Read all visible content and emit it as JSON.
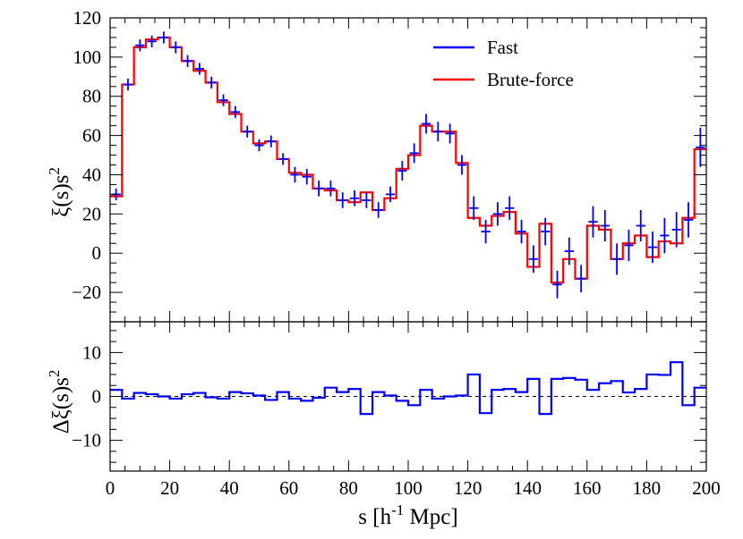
{
  "chart_data": [
    {
      "type": "line",
      "panel": "top",
      "ylabel_main": "ξ(s)s",
      "ylabel_sup": "2",
      "xlim": [
        0,
        200
      ],
      "ylim": [
        -35,
        120
      ],
      "yticks": [
        -20,
        0,
        20,
        40,
        60,
        80,
        100,
        120
      ],
      "ytick_labels": [
        "−20",
        "0",
        "20",
        "40",
        "60",
        "80",
        "100",
        "120"
      ],
      "legend": {
        "placement": "top-right",
        "entries": [
          "Fast",
          "Brute-force"
        ]
      },
      "bin_edges": [
        0,
        4,
        8,
        12,
        16,
        20,
        24,
        28,
        32,
        36,
        40,
        44,
        48,
        52,
        56,
        60,
        64,
        68,
        72,
        76,
        80,
        84,
        88,
        92,
        96,
        100,
        104,
        108,
        112,
        116,
        120,
        124,
        128,
        132,
        136,
        140,
        144,
        148,
        152,
        156,
        160,
        164,
        168,
        172,
        176,
        180,
        184,
        188,
        192,
        196,
        200
      ],
      "series": [
        {
          "name": "Fast",
          "color": "#0000ff",
          "style": "points-with-error-bars",
          "x": [
            2,
            6,
            10,
            14,
            18,
            22,
            26,
            30,
            34,
            38,
            42,
            46,
            50,
            54,
            58,
            62,
            66,
            70,
            74,
            78,
            82,
            86,
            90,
            94,
            98,
            102,
            106,
            110,
            114,
            118,
            122,
            126,
            130,
            134,
            138,
            142,
            146,
            150,
            154,
            158,
            162,
            166,
            170,
            174,
            178,
            182,
            186,
            190,
            194,
            198
          ],
          "values": [
            30,
            86,
            106,
            108,
            110,
            105,
            98,
            94,
            87,
            78,
            72,
            62,
            55,
            57,
            48,
            40,
            39,
            33,
            33,
            27,
            28,
            27,
            22,
            30,
            42,
            51,
            66,
            62,
            61,
            45,
            23,
            11,
            20,
            23,
            11,
            -3,
            11,
            -16,
            1,
            -13,
            16,
            14,
            -3,
            4,
            14,
            3,
            9,
            12,
            17,
            54
          ],
          "errors": [
            3,
            3,
            3,
            3,
            3,
            3,
            3,
            3,
            3,
            3,
            3,
            3,
            3,
            3,
            3,
            4,
            4,
            4,
            4,
            4,
            4,
            4,
            4,
            4,
            5,
            5,
            5,
            5,
            5,
            5,
            6,
            6,
            6,
            6,
            6,
            7,
            7,
            7,
            7,
            7,
            8,
            8,
            8,
            8,
            8,
            8,
            9,
            9,
            9,
            10
          ]
        },
        {
          "name": "Brute-force",
          "color": "#ff0000",
          "style": "step",
          "x": [
            2,
            6,
            10,
            14,
            18,
            22,
            26,
            30,
            34,
            38,
            42,
            46,
            50,
            54,
            58,
            62,
            66,
            70,
            74,
            78,
            82,
            86,
            90,
            94,
            98,
            102,
            106,
            110,
            114,
            118,
            122,
            126,
            130,
            134,
            138,
            142,
            146,
            150,
            154,
            158,
            162,
            166,
            170,
            174,
            178,
            182,
            186,
            190,
            194,
            198
          ],
          "values": [
            29,
            86,
            105,
            109,
            110,
            105,
            98,
            93,
            87,
            77,
            71,
            62,
            56,
            57,
            48,
            41,
            40,
            33,
            32,
            27,
            26,
            31,
            22,
            28,
            43,
            50,
            65,
            62,
            62,
            46,
            18,
            14,
            19,
            21,
            10,
            -7,
            15,
            -15,
            -3,
            -13,
            14,
            12,
            -3,
            5,
            9,
            -2,
            6,
            5,
            18,
            53
          ]
        }
      ]
    },
    {
      "type": "line",
      "panel": "bottom",
      "ylabel_main": "Δξ(s)s",
      "ylabel_sup": "2",
      "xlabel_main": "s [h",
      "xlabel_sup": "-1",
      "xlabel_tail": " Mpc]",
      "xlim": [
        0,
        200
      ],
      "ylim": [
        -17,
        17
      ],
      "xticks": [
        0,
        20,
        40,
        60,
        80,
        100,
        120,
        140,
        160,
        180,
        200
      ],
      "xtick_labels": [
        "0",
        "20",
        "40",
        "60",
        "80",
        "100",
        "120",
        "140",
        "160",
        "180",
        "200"
      ],
      "yticks": [
        -10,
        0,
        10
      ],
      "ytick_labels": [
        "−10",
        "0",
        "10"
      ],
      "reference_line": 0,
      "series": [
        {
          "name": "",
          "color": "#0000ff",
          "style": "step",
          "x": [
            2,
            6,
            10,
            14,
            18,
            22,
            26,
            30,
            34,
            38,
            42,
            46,
            50,
            54,
            58,
            62,
            66,
            70,
            74,
            78,
            82,
            86,
            90,
            94,
            98,
            102,
            106,
            110,
            114,
            118,
            122,
            126,
            130,
            134,
            138,
            142,
            146,
            150,
            154,
            158,
            162,
            166,
            170,
            174,
            178,
            182,
            186,
            190,
            194,
            198
          ],
          "values": [
            1.5,
            -0.5,
            0.8,
            0.5,
            0,
            -0.5,
            0.5,
            0.8,
            -0.2,
            -0.5,
            1,
            0.7,
            0.2,
            -0.8,
            1.0,
            -0.5,
            -1.0,
            -0.3,
            2.0,
            1.0,
            1.7,
            -4.0,
            1.0,
            0.2,
            -1.0,
            -2.0,
            1.5,
            -0.5,
            0,
            0.2,
            5.0,
            -3.8,
            1.5,
            1.7,
            1.0,
            4.0,
            -4.0,
            4.0,
            4.2,
            3.8,
            1.5,
            3.0,
            3.5,
            0.9,
            1.7,
            5.0,
            4.9,
            7.8,
            -2.0,
            2.0
          ]
        }
      ]
    }
  ]
}
